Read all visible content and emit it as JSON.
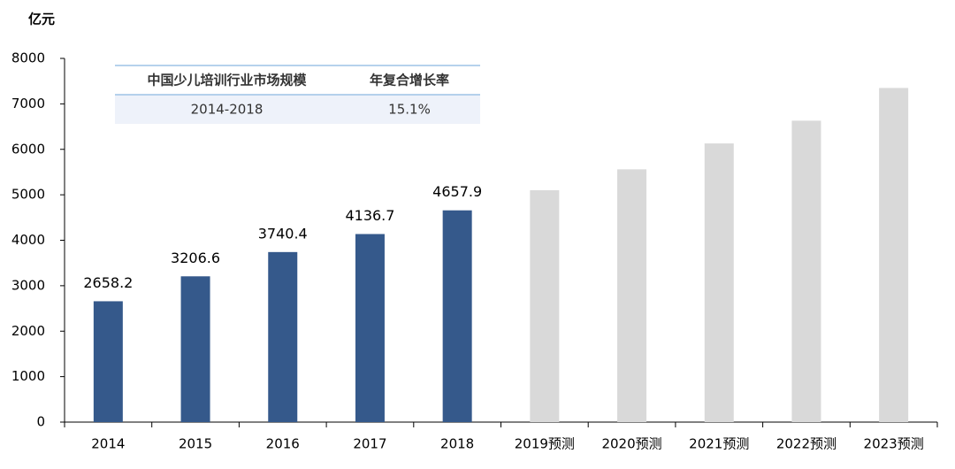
{
  "chart_data": {
    "type": "bar",
    "ylabel": "亿元",
    "categories": [
      "2014",
      "2015",
      "2016",
      "2017",
      "2018",
      "2019预测",
      "2020预测",
      "2021预测",
      "2022预测",
      "2023预测"
    ],
    "values": [
      2658.2,
      3206.6,
      3740.4,
      4136.7,
      4657.9,
      5100,
      5560,
      6130,
      6630,
      7350
    ],
    "value_labels": [
      "2658.2",
      "3206.6",
      "3740.4",
      "4136.7",
      "4657.9",
      null,
      null,
      null,
      null,
      null
    ],
    "colors": [
      "#35598b",
      "#35598b",
      "#35598b",
      "#35598b",
      "#35598b",
      "#d9d9d9",
      "#d9d9d9",
      "#d9d9d9",
      "#d9d9d9",
      "#d9d9d9"
    ],
    "ylim": [
      0,
      8000
    ],
    "yticks": [
      0,
      1000,
      2000,
      3000,
      4000,
      5000,
      6000,
      7000,
      8000
    ],
    "grid": false,
    "table": {
      "header": [
        "中国少儿培训行业市场规模",
        "年复合增长率"
      ],
      "rows": [
        [
          "2014-2018",
          "15.1%"
        ]
      ]
    }
  }
}
